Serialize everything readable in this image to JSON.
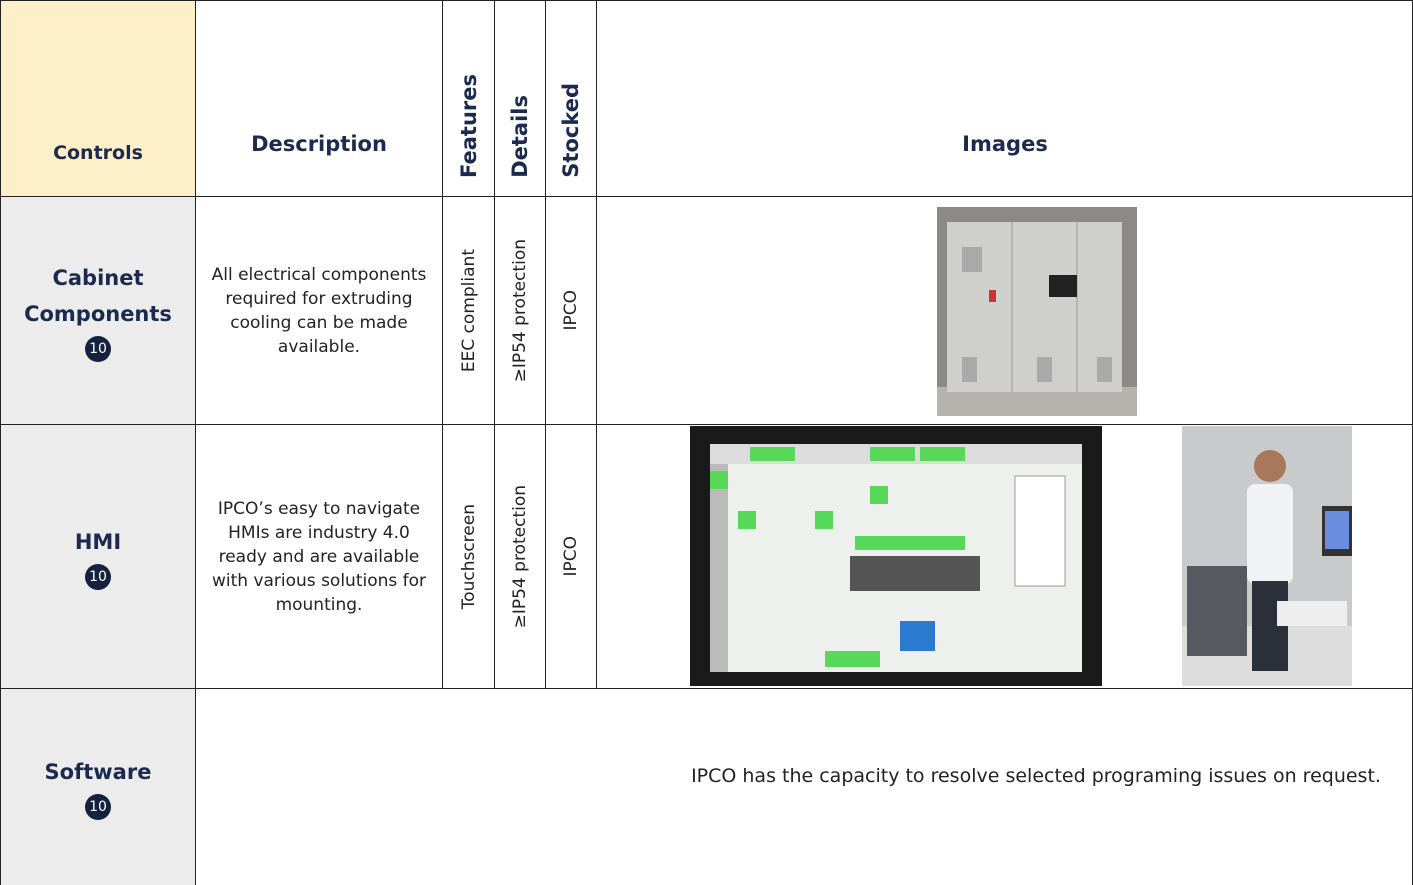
{
  "table": {
    "header": [
      "Controls",
      "Description",
      "Features",
      "Details",
      "Stocked",
      "Images"
    ],
    "rows": [
      {
        "control": "Cabinet Components",
        "badge": "10",
        "description": "All electrical components required for extruding cooling can be made available.",
        "features": "EEC compliant",
        "details": "≥IP54 protection",
        "stocked": "IPCO"
      },
      {
        "control": "HMI",
        "badge": "10",
        "description": "IPCO’s easy to navigate HMIs are industry 4.0 ready and are available with various solutions for mounting.",
        "features": "Touchscreen",
        "details": "≥IP54 protection",
        "stocked": "IPCO"
      },
      {
        "control": "Software",
        "badge": "10",
        "description": "IPCO has the capacity to resolve selected programing issues on request."
      }
    ]
  }
}
